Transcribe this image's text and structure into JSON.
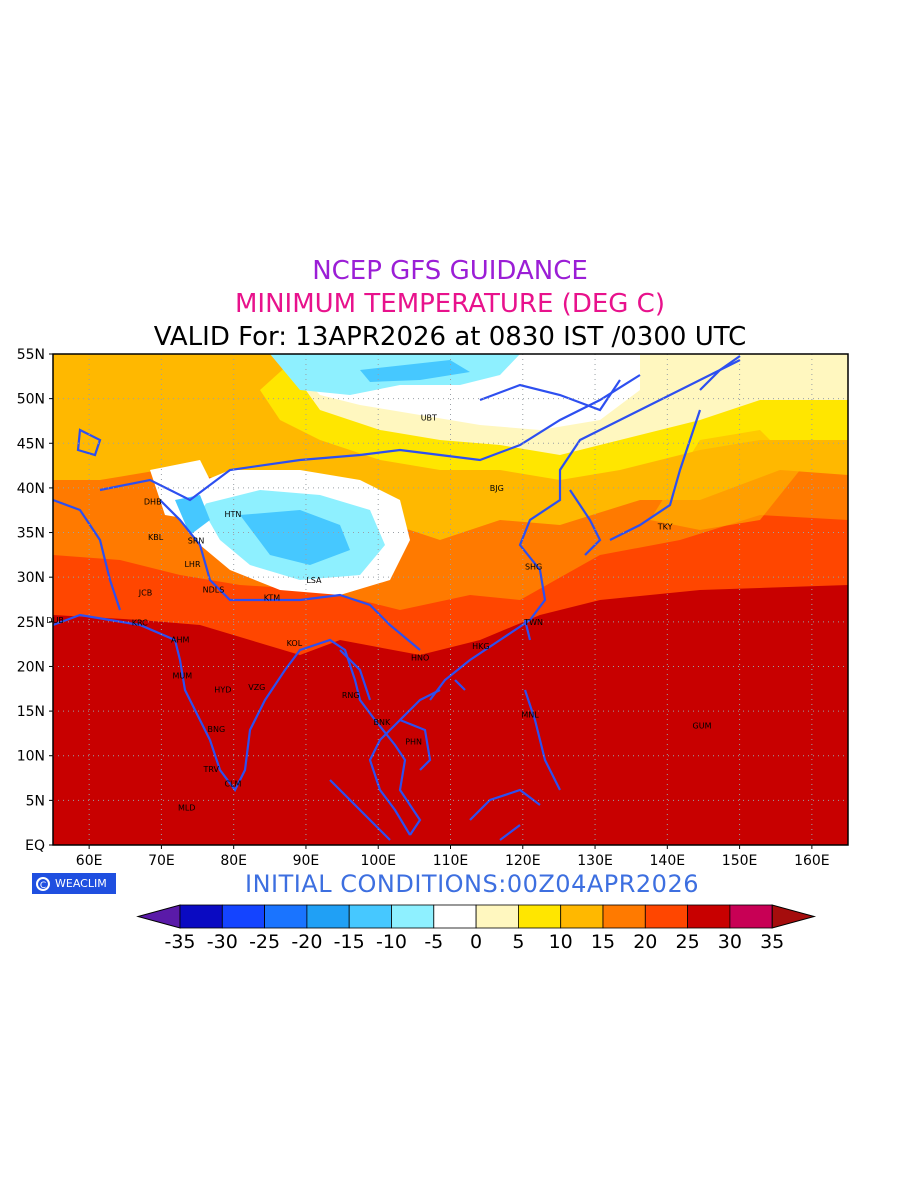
{
  "titles": {
    "line1": "NCEP GFS GUIDANCE",
    "line2": "MINIMUM TEMPERATURE (DEG C)",
    "line3": "VALID For: 13APR2026 at 0830 IST /0300 UTC",
    "line1_color": "#9b1ed6",
    "line2_color": "#e8128c"
  },
  "init_conditions": "INITIAL CONDITIONS:00Z04APR2026",
  "init_color": "#3d6fe0",
  "brand": {
    "label": "WEACLIM",
    "icon": "copyright-circle-icon"
  },
  "map": {
    "lon_range": [
      55,
      165
    ],
    "lat_range": [
      0,
      55
    ],
    "lat_ticks": [
      "55N",
      "50N",
      "45N",
      "40N",
      "35N",
      "30N",
      "25N",
      "20N",
      "15N",
      "10N",
      "5N",
      "EQ"
    ],
    "lon_ticks": [
      "60E",
      "70E",
      "80E",
      "90E",
      "100E",
      "110E",
      "120E",
      "130E",
      "140E",
      "150E",
      "160E"
    ],
    "coast_color": "#2d4ff0",
    "cities": [
      {
        "code": "UBT",
        "lon": 107,
        "lat": 47.9
      },
      {
        "code": "BJG",
        "lon": 116.4,
        "lat": 40
      },
      {
        "code": "DHB",
        "lon": 68.8,
        "lat": 38.5
      },
      {
        "code": "HTN",
        "lon": 79.9,
        "lat": 37.1
      },
      {
        "code": "TKY",
        "lon": 139.7,
        "lat": 35.7
      },
      {
        "code": "KBL",
        "lon": 69.2,
        "lat": 34.5
      },
      {
        "code": "SRN",
        "lon": 74.8,
        "lat": 34.1
      },
      {
        "code": "LHR",
        "lon": 74.3,
        "lat": 31.5
      },
      {
        "code": "SHG",
        "lon": 121.5,
        "lat": 31.2
      },
      {
        "code": "LSA",
        "lon": 91.1,
        "lat": 29.7
      },
      {
        "code": "JCB",
        "lon": 67.8,
        "lat": 28.3
      },
      {
        "code": "NDLS",
        "lon": 77.2,
        "lat": 28.6
      },
      {
        "code": "KTM",
        "lon": 85.3,
        "lat": 27.7
      },
      {
        "code": "DUB",
        "lon": 55.3,
        "lat": 25.2
      },
      {
        "code": "TWN",
        "lon": 121.5,
        "lat": 25
      },
      {
        "code": "KRC",
        "lon": 67,
        "lat": 24.9
      },
      {
        "code": "AHM",
        "lon": 72.6,
        "lat": 23
      },
      {
        "code": "KOL",
        "lon": 88.4,
        "lat": 22.6
      },
      {
        "code": "HKG",
        "lon": 114.2,
        "lat": 22.3
      },
      {
        "code": "HNO",
        "lon": 105.8,
        "lat": 21
      },
      {
        "code": "MUM",
        "lon": 72.9,
        "lat": 19
      },
      {
        "code": "HYD",
        "lon": 78.5,
        "lat": 17.4
      },
      {
        "code": "VZG",
        "lon": 83.2,
        "lat": 17.7
      },
      {
        "code": "RNG",
        "lon": 96.2,
        "lat": 16.8
      },
      {
        "code": "MNL",
        "lon": 121,
        "lat": 14.6
      },
      {
        "code": "BNK",
        "lon": 100.5,
        "lat": 13.8
      },
      {
        "code": "GUM",
        "lon": 144.8,
        "lat": 13.4
      },
      {
        "code": "BNG",
        "lon": 77.6,
        "lat": 13
      },
      {
        "code": "PHN",
        "lon": 104.9,
        "lat": 11.6
      },
      {
        "code": "TRV",
        "lon": 76.9,
        "lat": 8.5
      },
      {
        "code": "CLM",
        "lon": 79.9,
        "lat": 6.9
      },
      {
        "code": "MLD",
        "lon": 73.5,
        "lat": 4.2
      }
    ]
  },
  "colorbar": {
    "labels": [
      "-35",
      "-30",
      "-25",
      "-20",
      "-15",
      "-10",
      "-5",
      "0",
      "5",
      "10",
      "15",
      "20",
      "25",
      "30",
      "35"
    ],
    "under_color": "#5a1aa8",
    "over_color": "#a50d0d",
    "colors": [
      "#0a0ac2",
      "#1444ff",
      "#1a74ff",
      "#20a0f5",
      "#46c8ff",
      "#8ef0ff",
      "#ffffff",
      "#fff7bf",
      "#ffe600",
      "#ffb800",
      "#ff7a00",
      "#ff4600",
      "#c80000",
      "#c80055"
    ]
  }
}
